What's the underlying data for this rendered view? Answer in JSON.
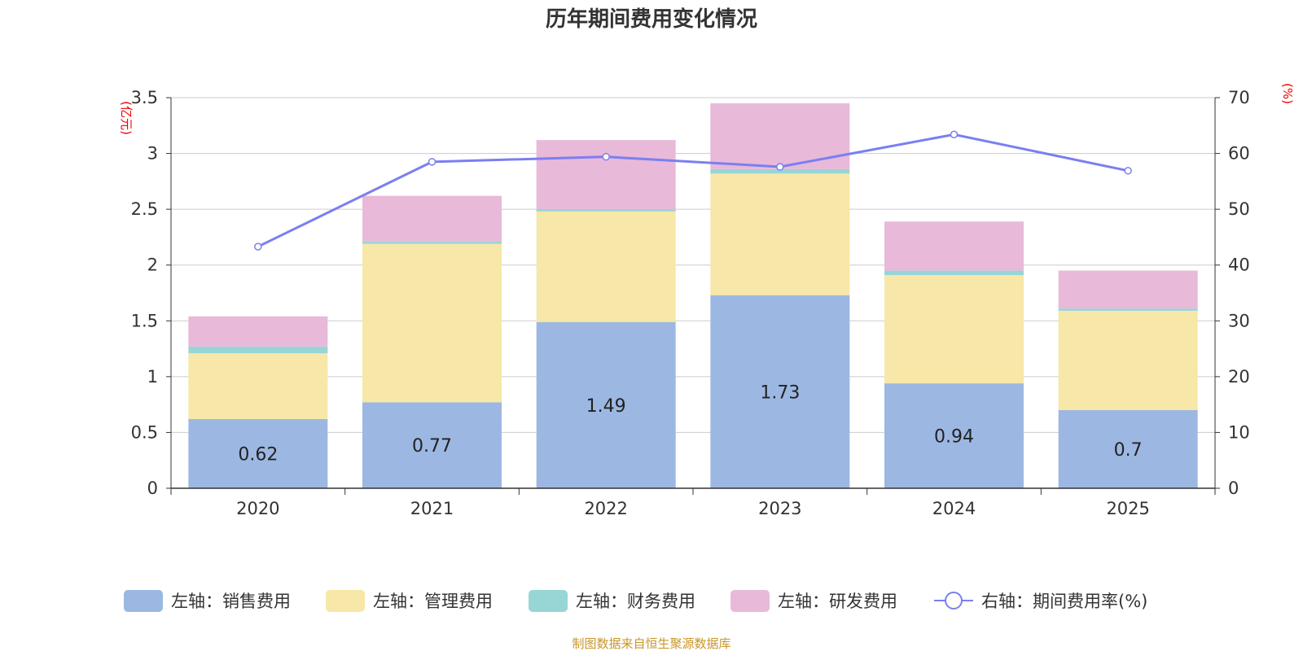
{
  "chart_data": {
    "type": "bar",
    "stacked": true,
    "title": "历年期间费用变化情况",
    "categories": [
      "2020",
      "2021",
      "2022",
      "2023",
      "2024",
      "2025"
    ],
    "left_axis": {
      "unit": "(亿元)",
      "range": [
        0,
        3.5
      ],
      "ticks": [
        "0",
        "0.5",
        "1",
        "1.5",
        "2",
        "2.5",
        "3",
        "3.5"
      ],
      "tick_values": [
        0,
        0.5,
        1,
        1.5,
        2,
        2.5,
        3,
        3.5
      ]
    },
    "right_axis": {
      "unit": "(%)",
      "range": [
        0,
        70
      ],
      "ticks": [
        "0",
        "10",
        "20",
        "30",
        "40",
        "50",
        "60",
        "70"
      ],
      "tick_values": [
        0,
        10,
        20,
        30,
        40,
        50,
        60,
        70
      ]
    },
    "series": [
      {
        "name": "左轴：销售费用",
        "axis": "left",
        "color": "#9cb8e2",
        "values": [
          0.62,
          0.77,
          1.49,
          1.73,
          0.94,
          0.7
        ],
        "labels": [
          "0.62",
          "0.77",
          "1.49",
          "1.73",
          "0.94",
          "0.7"
        ]
      },
      {
        "name": "左轴：管理费用",
        "axis": "left",
        "color": "#f7e7a8",
        "values": [
          0.59,
          1.42,
          0.99,
          1.09,
          0.97,
          0.89
        ]
      },
      {
        "name": "左轴：财务费用",
        "axis": "left",
        "color": "#98d5d5",
        "values": [
          0.06,
          0.02,
          0.02,
          0.04,
          0.04,
          0.02
        ]
      },
      {
        "name": "左轴：研发费用",
        "axis": "left",
        "color": "#e8b9d9",
        "values": [
          0.27,
          0.41,
          0.62,
          0.59,
          0.44,
          0.34
        ]
      },
      {
        "name": "右轴：期间费用率(%)",
        "axis": "right",
        "type": "line",
        "color": "#7b7ff0",
        "values": [
          43.3,
          58.5,
          59.4,
          57.6,
          63.4,
          56.9
        ]
      }
    ],
    "source": "制图数据来自恒生聚源数据库"
  }
}
